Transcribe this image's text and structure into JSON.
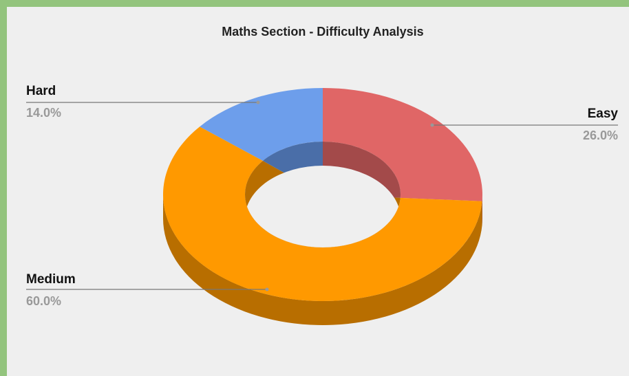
{
  "chart_data": {
    "type": "donut3d",
    "title": "Maths Section - Difficulty Analysis",
    "categories": [
      "Easy",
      "Medium",
      "Hard"
    ],
    "values": [
      26,
      60,
      14
    ],
    "value_labels": [
      "26.0%",
      "60.0%",
      "14.0%"
    ],
    "colors": [
      "#e06666",
      "#ff9900",
      "#6d9eeb"
    ],
    "side_colors": [
      "#a34a4a",
      "#b86e00",
      "#4a6ea8"
    ]
  }
}
